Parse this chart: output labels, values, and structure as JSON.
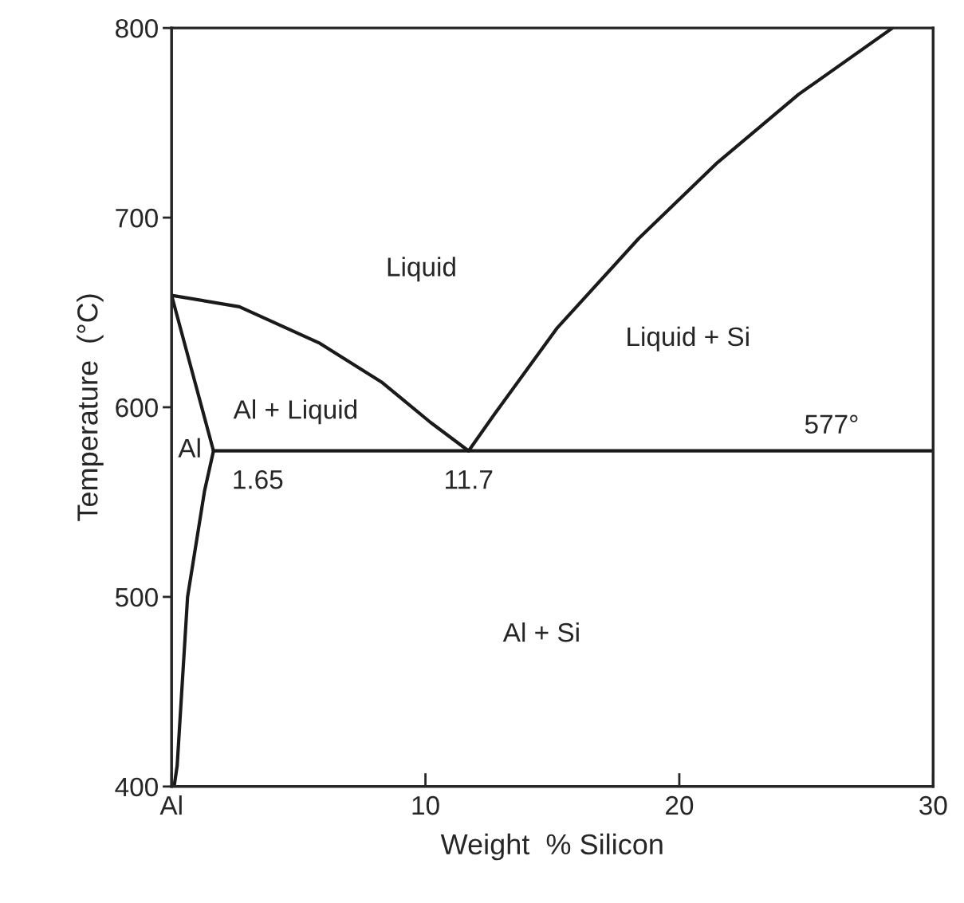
{
  "chart_data": {
    "type": "line",
    "xlabel": "Weight  % Silicon",
    "ylabel": "Temperature  (°C)",
    "xlim": [
      0,
      30
    ],
    "ylim": [
      400,
      800
    ],
    "xticks": [
      {
        "value": 0,
        "label": "Al"
      },
      10,
      20,
      30
    ],
    "yticks": [
      400,
      500,
      600,
      700,
      800
    ],
    "grid": false,
    "legend": false,
    "marker": "none",
    "line_style": "solid",
    "series": [
      {
        "color": "#1a1a1a",
        "x": [
          0,
          2.67,
          5.8,
          8.3,
          10.2,
          11.7
        ],
        "values": [
          659,
          653,
          634,
          613,
          592,
          577
        ]
      },
      {
        "color": "#1a1a1a",
        "x": [
          11.7,
          12.7,
          15.2,
          18.4,
          21.5,
          24.7,
          28.4
        ],
        "values": [
          577,
          596,
          642,
          689,
          729,
          765,
          800
        ]
      },
      {
        "color": "#1a1a1a",
        "x": [
          0,
          1.65
        ],
        "values": [
          659,
          577
        ]
      },
      {
        "color": "#1a1a1a",
        "x": [
          1.65,
          1.3,
          0.63,
          0.22,
          0.1
        ],
        "values": [
          577,
          556,
          500,
          411,
          400
        ]
      },
      {
        "color": "#1a1a1a",
        "x": [
          1.65,
          30
        ],
        "values": [
          577,
          577
        ]
      }
    ],
    "annotations": [
      "Liquid",
      "Liquid + Si",
      "Al + Liquid",
      "Al",
      {
        "text": "1.65",
        "x": 1.65,
        "y": 577
      },
      {
        "text": "11.7",
        "x": 11.7,
        "y": 577
      },
      {
        "text": "577°",
        "x": 26,
        "y": 577
      },
      "Al + Si"
    ]
  }
}
